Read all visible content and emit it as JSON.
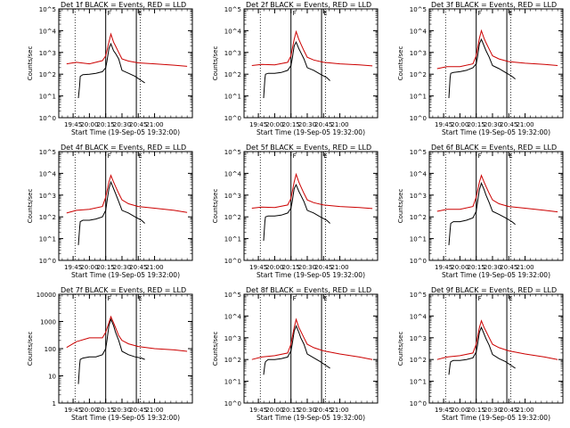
{
  "figure": {
    "x_tick_labels": [
      "19:45",
      "20:00",
      "20:15",
      "20:30",
      "20:45",
      "21:00"
    ],
    "x_tick_hours": [
      19.75,
      20.0,
      20.25,
      20.5,
      20.75,
      21.0
    ],
    "ylabel": "Counts/sec",
    "xlabel": "Start Time (19-Sep-05 19:32:00)",
    "marker_labels": [
      "F",
      "E"
    ],
    "colors": {
      "events": "#000000",
      "lld": "#cc0000",
      "frame": "#000000"
    }
  },
  "chart_data": [
    {
      "type": "line",
      "title": "Det 1f BLACK = Events, RED = LLD",
      "xlabel": "Start Time (19-Sep-05 19:32:00)",
      "ylabel": "Counts/sec",
      "xlim_hours": [
        19.53,
        21.58
      ],
      "ylim": [
        1,
        100000
      ],
      "yscale": "log",
      "ytick_labels": [
        "10^0",
        "10^1",
        "10^2",
        "10^3",
        "10^4",
        "10^5"
      ],
      "dotted_line_hours": [
        19.78,
        20.78
      ],
      "solid_line_hours": [
        20.25,
        20.72
      ],
      "series": [
        {
          "color": "#000000",
          "x": [
            19.83,
            19.85,
            19.86,
            19.9,
            20.0,
            20.1,
            20.2,
            20.25,
            20.27,
            20.3,
            20.33,
            20.37,
            20.4,
            20.45,
            20.5,
            20.6,
            20.7,
            20.8,
            20.85
          ],
          "y": [
            8,
            30,
            80,
            95,
            100,
            110,
            130,
            200,
            400,
            1500,
            2500,
            1200,
            900,
            500,
            150,
            110,
            80,
            50,
            40
          ]
        },
        {
          "color": "#cc0000",
          "x": [
            19.65,
            19.8,
            20.0,
            20.2,
            20.25,
            20.3,
            20.33,
            20.37,
            20.4,
            20.45,
            20.5,
            20.6,
            20.75,
            21.0,
            21.3,
            21.5
          ],
          "y": [
            300,
            350,
            300,
            420,
            700,
            3000,
            7000,
            3000,
            2000,
            1000,
            500,
            400,
            330,
            300,
            260,
            230
          ]
        }
      ]
    },
    {
      "type": "line",
      "title": "Det 2f BLACK = Events, RED = LLD",
      "xlabel": "Start Time (19-Sep-05 19:32:00)",
      "ylabel": "Counts/sec",
      "xlim_hours": [
        19.53,
        21.58
      ],
      "ylim": [
        1,
        100000
      ],
      "yscale": "log",
      "ytick_labels": [
        "10^0",
        "10^1",
        "10^2",
        "10^3",
        "10^4",
        "10^5"
      ],
      "dotted_line_hours": [
        19.78,
        20.78
      ],
      "solid_line_hours": [
        20.25,
        20.72
      ],
      "series": [
        {
          "color": "#000000",
          "x": [
            19.83,
            19.85,
            19.86,
            19.9,
            20.0,
            20.1,
            20.2,
            20.25,
            20.27,
            20.3,
            20.33,
            20.37,
            20.4,
            20.45,
            20.5,
            20.6,
            20.7,
            20.8,
            20.85
          ],
          "y": [
            8,
            60,
            100,
            110,
            110,
            120,
            150,
            250,
            500,
            2000,
            3000,
            1500,
            1000,
            500,
            200,
            150,
            100,
            70,
            50
          ]
        },
        {
          "color": "#cc0000",
          "x": [
            19.65,
            19.8,
            20.0,
            20.2,
            20.25,
            20.3,
            20.33,
            20.37,
            20.4,
            20.45,
            20.5,
            20.6,
            20.75,
            21.0,
            21.3,
            21.5
          ],
          "y": [
            250,
            280,
            270,
            350,
            700,
            4000,
            9000,
            4000,
            2500,
            1200,
            600,
            450,
            350,
            300,
            270,
            240
          ]
        }
      ]
    },
    {
      "type": "line",
      "title": "Det 3f BLACK = Events, RED = LLD",
      "xlabel": "Start Time (19-Sep-05 19:32:00)",
      "ylabel": "Counts/sec",
      "xlim_hours": [
        19.53,
        21.58
      ],
      "ylim": [
        1,
        100000
      ],
      "yscale": "log",
      "ytick_labels": [
        "10^0",
        "10^1",
        "10^2",
        "10^3",
        "10^4",
        "10^5"
      ],
      "dotted_line_hours": [
        19.78,
        20.78
      ],
      "solid_line_hours": [
        20.25,
        20.72
      ],
      "series": [
        {
          "color": "#000000",
          "x": [
            19.83,
            19.85,
            19.86,
            19.9,
            20.0,
            20.1,
            20.2,
            20.25,
            20.27,
            20.3,
            20.33,
            20.37,
            20.4,
            20.45,
            20.5,
            20.6,
            20.7,
            20.8,
            20.85
          ],
          "y": [
            8,
            70,
            110,
            120,
            130,
            150,
            200,
            300,
            600,
            2500,
            4000,
            2000,
            1200,
            600,
            250,
            180,
            120,
            80,
            60
          ]
        },
        {
          "color": "#cc0000",
          "x": [
            19.65,
            19.8,
            20.0,
            20.2,
            20.25,
            20.3,
            20.33,
            20.37,
            20.4,
            20.45,
            20.5,
            20.6,
            20.75,
            21.0,
            21.3,
            21.5
          ],
          "y": [
            180,
            220,
            220,
            300,
            700,
            4500,
            10000,
            4500,
            2800,
            1400,
            700,
            500,
            380,
            320,
            280,
            250
          ]
        }
      ]
    },
    {
      "type": "line",
      "title": "Det 4f BLACK = Events, RED = LLD",
      "xlabel": "Start Time (19-Sep-05 19:32:00)",
      "ylabel": "Counts/sec",
      "xlim_hours": [
        19.53,
        21.58
      ],
      "ylim": [
        1,
        100000
      ],
      "yscale": "log",
      "ytick_labels": [
        "10^0",
        "10^1",
        "10^2",
        "10^3",
        "10^4",
        "10^5"
      ],
      "dotted_line_hours": [
        19.78,
        20.78
      ],
      "solid_line_hours": [
        20.25,
        20.72
      ],
      "series": [
        {
          "color": "#000000",
          "x": [
            19.83,
            19.85,
            19.86,
            19.9,
            20.0,
            20.1,
            20.2,
            20.25,
            20.27,
            20.3,
            20.33,
            20.37,
            20.4,
            20.45,
            20.5,
            20.6,
            20.7,
            20.8,
            20.85
          ],
          "y": [
            5,
            30,
            60,
            70,
            70,
            80,
            100,
            200,
            500,
            2000,
            4000,
            2000,
            1200,
            500,
            200,
            150,
            100,
            70,
            50
          ]
        },
        {
          "color": "#cc0000",
          "x": [
            19.65,
            19.8,
            20.0,
            20.2,
            20.25,
            20.3,
            20.33,
            20.37,
            20.4,
            20.45,
            20.5,
            20.6,
            20.75,
            21.0,
            21.3,
            21.5
          ],
          "y": [
            150,
            200,
            220,
            300,
            800,
            4000,
            8000,
            4000,
            2500,
            1200,
            600,
            400,
            300,
            250,
            200,
            160
          ]
        }
      ]
    },
    {
      "type": "line",
      "title": "Det 5f BLACK = Events, RED = LLD",
      "xlabel": "Start Time (19-Sep-05 19:32:00)",
      "ylabel": "Counts/sec",
      "xlim_hours": [
        19.53,
        21.58
      ],
      "ylim": [
        1,
        100000
      ],
      "yscale": "log",
      "ytick_labels": [
        "10^0",
        "10^1",
        "10^2",
        "10^3",
        "10^4",
        "10^5"
      ],
      "dotted_line_hours": [
        19.78,
        20.78
      ],
      "solid_line_hours": [
        20.25,
        20.72
      ],
      "series": [
        {
          "color": "#000000",
          "x": [
            19.83,
            19.85,
            19.86,
            19.9,
            20.0,
            20.1,
            20.2,
            20.25,
            20.27,
            20.3,
            20.33,
            20.37,
            20.4,
            20.45,
            20.5,
            20.6,
            20.7,
            20.8,
            20.85
          ],
          "y": [
            8,
            60,
            100,
            110,
            110,
            120,
            150,
            250,
            500,
            2000,
            3000,
            1500,
            1000,
            500,
            200,
            150,
            100,
            70,
            50
          ]
        },
        {
          "color": "#cc0000",
          "x": [
            19.65,
            19.8,
            20.0,
            20.2,
            20.25,
            20.3,
            20.33,
            20.37,
            20.4,
            20.45,
            20.5,
            20.6,
            20.75,
            21.0,
            21.3,
            21.5
          ],
          "y": [
            250,
            280,
            270,
            350,
            700,
            4000,
            9000,
            4000,
            2500,
            1200,
            600,
            450,
            350,
            300,
            270,
            240
          ]
        }
      ]
    },
    {
      "type": "line",
      "title": "Det 6f BLACK = Events, RED = LLD",
      "xlabel": "Start Time (19-Sep-05 19:32:00)",
      "ylabel": "Counts/sec",
      "xlim_hours": [
        19.53,
        21.58
      ],
      "ylim": [
        1,
        100000
      ],
      "yscale": "log",
      "ytick_labels": [
        "10^0",
        "10^1",
        "10^2",
        "10^3",
        "10^4",
        "10^5"
      ],
      "dotted_line_hours": [
        19.78,
        20.78
      ],
      "solid_line_hours": [
        20.25,
        20.72
      ],
      "series": [
        {
          "color": "#000000",
          "x": [
            19.83,
            19.85,
            19.86,
            19.9,
            20.0,
            20.1,
            20.2,
            20.25,
            20.27,
            20.3,
            20.33,
            20.37,
            20.4,
            20.45,
            20.5,
            20.6,
            20.7,
            20.8,
            20.85
          ],
          "y": [
            5,
            25,
            50,
            60,
            60,
            70,
            90,
            180,
            450,
            1800,
            3500,
            1800,
            1000,
            450,
            180,
            130,
            90,
            60,
            45
          ]
        },
        {
          "color": "#cc0000",
          "x": [
            19.65,
            19.8,
            20.0,
            20.2,
            20.25,
            20.3,
            20.33,
            20.37,
            20.4,
            20.45,
            20.5,
            20.6,
            20.75,
            21.0,
            21.3,
            21.5
          ],
          "y": [
            180,
            220,
            220,
            300,
            800,
            4000,
            8000,
            4000,
            2500,
            1200,
            600,
            400,
            300,
            250,
            200,
            170
          ]
        }
      ]
    },
    {
      "type": "line",
      "title": "Det 7f BLACK = Events, RED = LLD",
      "xlabel": "Start Time (19-Sep-05 19:32:00)",
      "ylabel": "Counts/sec",
      "xlim_hours": [
        19.53,
        21.58
      ],
      "ylim": [
        1,
        10000
      ],
      "yscale": "log",
      "ytick_labels": [
        "1",
        "10",
        "100",
        "1000",
        "10000"
      ],
      "dotted_line_hours": [
        19.78,
        20.78
      ],
      "solid_line_hours": [
        20.25,
        20.72
      ],
      "series": [
        {
          "color": "#000000",
          "x": [
            19.83,
            19.85,
            19.86,
            19.9,
            20.0,
            20.1,
            20.2,
            20.25,
            20.27,
            20.3,
            20.33,
            20.37,
            20.4,
            20.45,
            20.5,
            20.6,
            20.7,
            20.8,
            20.85
          ],
          "y": [
            5,
            25,
            40,
            45,
            50,
            50,
            60,
            100,
            200,
            700,
            1200,
            700,
            400,
            200,
            80,
            60,
            50,
            45,
            40
          ]
        },
        {
          "color": "#cc0000",
          "x": [
            19.65,
            19.8,
            20.0,
            20.2,
            20.25,
            20.3,
            20.33,
            20.37,
            20.4,
            20.45,
            20.5,
            20.6,
            20.75,
            21.0,
            21.3,
            21.5
          ],
          "y": [
            110,
            180,
            250,
            250,
            400,
            900,
            1500,
            900,
            600,
            300,
            200,
            150,
            120,
            100,
            90,
            80
          ]
        }
      ]
    },
    {
      "type": "line",
      "title": "Det 8f BLACK = Events, RED = LLD",
      "xlabel": "Start Time (19-Sep-05 19:32:00)",
      "ylabel": "Counts/sec",
      "xlim_hours": [
        19.53,
        21.58
      ],
      "ylim": [
        1,
        100000
      ],
      "yscale": "log",
      "ytick_labels": [
        "10^0",
        "10^1",
        "10^2",
        "10^3",
        "10^4",
        "10^5"
      ],
      "dotted_line_hours": [
        19.78,
        20.78
      ],
      "solid_line_hours": [
        20.25,
        20.72
      ],
      "series": [
        {
          "color": "#000000",
          "x": [
            19.83,
            19.85,
            19.86,
            19.9,
            20.0,
            20.1,
            20.2,
            20.25,
            20.27,
            20.3,
            20.33,
            20.37,
            20.4,
            20.45,
            20.5,
            20.6,
            20.7,
            20.8,
            20.85
          ],
          "y": [
            20,
            60,
            80,
            100,
            100,
            110,
            130,
            250,
            500,
            2000,
            3500,
            1800,
            1000,
            500,
            180,
            120,
            80,
            50,
            40
          ]
        },
        {
          "color": "#cc0000",
          "x": [
            19.65,
            19.8,
            20.0,
            20.2,
            20.25,
            20.3,
            20.33,
            20.37,
            20.4,
            20.45,
            20.5,
            20.6,
            20.75,
            21.0,
            21.3,
            21.5
          ],
          "y": [
            100,
            130,
            150,
            200,
            500,
            3000,
            7000,
            3000,
            2000,
            1000,
            500,
            350,
            250,
            180,
            130,
            100
          ]
        }
      ]
    },
    {
      "type": "line",
      "title": "Det 9f BLACK = Events, RED = LLD",
      "xlabel": "Start Time (19-Sep-05 19:32:00)",
      "ylabel": "Counts/sec",
      "xlim_hours": [
        19.53,
        21.58
      ],
      "ylim": [
        1,
        100000
      ],
      "yscale": "log",
      "ytick_labels": [
        "10^0",
        "10^1",
        "10^2",
        "10^3",
        "10^4",
        "10^5"
      ],
      "dotted_line_hours": [
        19.78,
        20.78
      ],
      "solid_line_hours": [
        20.25,
        20.72
      ],
      "series": [
        {
          "color": "#000000",
          "x": [
            19.83,
            19.85,
            19.86,
            19.9,
            20.0,
            20.1,
            20.2,
            20.25,
            20.27,
            20.3,
            20.33,
            20.37,
            20.4,
            20.45,
            20.5,
            20.6,
            20.7,
            20.8,
            20.85
          ],
          "y": [
            20,
            60,
            80,
            90,
            90,
            100,
            120,
            220,
            450,
            1800,
            3000,
            1500,
            900,
            450,
            170,
            110,
            80,
            50,
            40
          ]
        },
        {
          "color": "#cc0000",
          "x": [
            19.65,
            19.8,
            20.0,
            20.2,
            20.25,
            20.3,
            20.33,
            20.37,
            20.4,
            20.45,
            20.5,
            20.6,
            20.75,
            21.0,
            21.3,
            21.5
          ],
          "y": [
            100,
            130,
            150,
            200,
            500,
            3000,
            6000,
            3000,
            2000,
            1000,
            500,
            350,
            250,
            180,
            130,
            100
          ]
        }
      ]
    }
  ]
}
